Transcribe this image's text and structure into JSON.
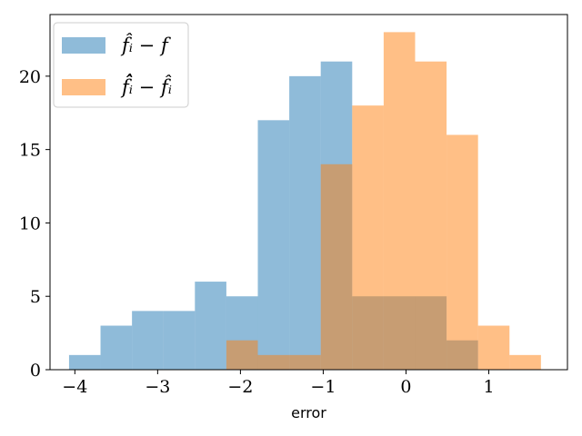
{
  "chart_data": {
    "type": "histogram",
    "title": "",
    "xlabel": "error",
    "ylabel": "",
    "xlim": [
      -4.3,
      1.95
    ],
    "ylim": [
      0,
      24.2
    ],
    "xticks": [
      -4,
      -3,
      -2,
      -1,
      0,
      1
    ],
    "xtick_labels": [
      "−4",
      "−3",
      "−2",
      "−1",
      "0",
      "1"
    ],
    "yticks": [
      0,
      5,
      10,
      15,
      20
    ],
    "ytick_labels": [
      "0",
      "5",
      "10",
      "15",
      "20"
    ],
    "grid": false,
    "legend_position": "top-left",
    "overlap_color": "#c69c73",
    "series": [
      {
        "label": "f̂ᵢ − f",
        "color": "#1f77b4",
        "alpha": 0.5,
        "bin_edges": [
          -4.07,
          -3.69,
          -3.31,
          -2.93,
          -2.55,
          -2.17,
          -1.79,
          -1.41,
          -1.03,
          -0.65,
          -0.27,
          0.11,
          0.49,
          0.87
        ],
        "counts": [
          1,
          3,
          4,
          4,
          6,
          5,
          17,
          20,
          21,
          5,
          5,
          5,
          2
        ]
      },
      {
        "label": "f̂̂ᵢ − f̂ᵢ",
        "color": "#ff7f0e",
        "alpha": 0.5,
        "bin_edges": [
          -2.17,
          -1.79,
          -1.41,
          -1.03,
          -0.65,
          -0.27,
          0.11,
          0.49,
          0.87,
          1.25,
          1.63
        ],
        "counts": [
          2,
          1,
          1,
          14,
          18,
          23,
          21,
          16,
          3,
          1
        ]
      }
    ]
  }
}
